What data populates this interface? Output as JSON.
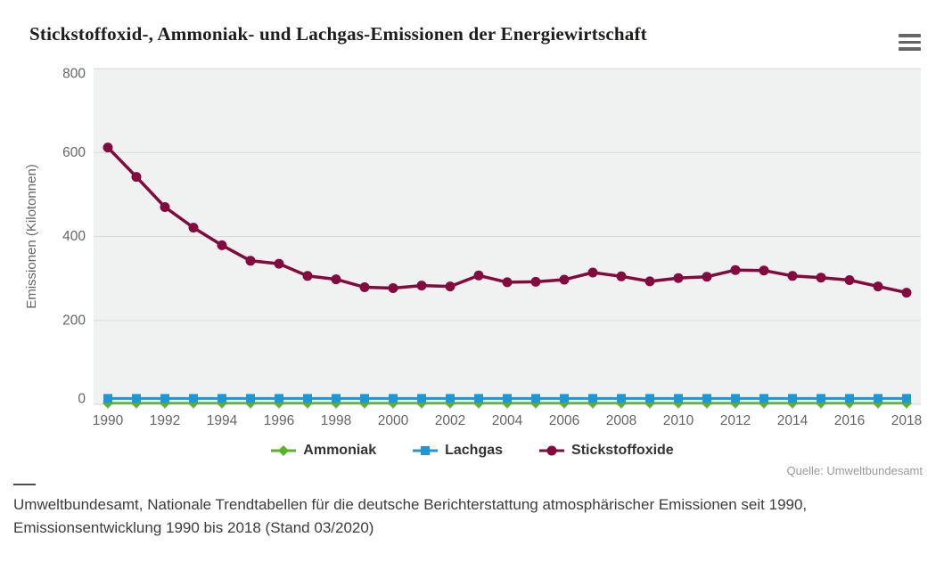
{
  "header": {
    "title": "Stickstoffoxid-, Ammoniak- und Lachgas-Emissionen der Energiewirtschaft",
    "menu_icon": "hamburger-menu"
  },
  "chart_data": {
    "type": "line",
    "title": "Stickstoffoxid-, Ammoniak- und Lachgas-Emissionen der Energiewirtschaft",
    "xlabel": "",
    "ylabel": "Emissionen (Kilotonnen)",
    "ylim": [
      0,
      800
    ],
    "yticks": [
      0,
      200,
      400,
      600,
      800
    ],
    "grid": true,
    "legend_position": "bottom",
    "x": [
      1990,
      1991,
      1992,
      1993,
      1994,
      1995,
      1996,
      1997,
      1998,
      1999,
      2000,
      2001,
      2002,
      2003,
      2004,
      2005,
      2006,
      2007,
      2008,
      2009,
      2010,
      2011,
      2012,
      2013,
      2014,
      2015,
      2016,
      2017,
      2018
    ],
    "xticks": [
      "1990",
      "1992",
      "1994",
      "1996",
      "1998",
      "2000",
      "2002",
      "2004",
      "2006",
      "2008",
      "2010",
      "2012",
      "2014",
      "2016",
      "2018"
    ],
    "series": [
      {
        "name": "Ammoniak",
        "color": "#5cb226",
        "marker": "diamond",
        "line_width": 2.5,
        "values": [
          3,
          3,
          3,
          3,
          3,
          3,
          3,
          3,
          3,
          3,
          3,
          3,
          3,
          3,
          3,
          3,
          3,
          3,
          3,
          3,
          3,
          3,
          3,
          3,
          3,
          3,
          3,
          3,
          3
        ]
      },
      {
        "name": "Lachgas",
        "color": "#1e97d4",
        "marker": "square",
        "line_width": 3,
        "values": [
          14,
          14,
          14,
          14,
          14,
          14,
          14,
          14,
          14,
          14,
          14,
          14,
          14,
          14,
          14,
          14,
          14,
          14,
          14,
          14,
          14,
          14,
          14,
          14,
          14,
          14,
          14,
          14,
          14
        ]
      },
      {
        "name": "Stickstoffoxide",
        "color": "#83093e",
        "marker": "circle",
        "line_width": 3.5,
        "values": [
          612,
          542,
          470,
          421,
          379,
          342,
          335,
          306,
          298,
          279,
          277,
          283,
          281,
          307,
          291,
          292,
          297,
          314,
          305,
          293,
          301,
          304,
          320,
          319,
          306,
          302,
          296,
          281,
          266
        ]
      }
    ],
    "colors": {
      "plot_bg": "#f0f1f1",
      "grid": "#d9d9d9",
      "axis": "#ccd6eb",
      "label": "#666666"
    }
  },
  "source": {
    "label": "Quelle: Umweltbundesamt"
  },
  "footer": {
    "text": "Umweltbundesamt, Nationale Trendtabellen für die deutsche Berichterstattung atmosphärischer Emissionen seit 1990, Emissionsentwicklung 1990 bis 2018 (Stand 03/2020)"
  }
}
